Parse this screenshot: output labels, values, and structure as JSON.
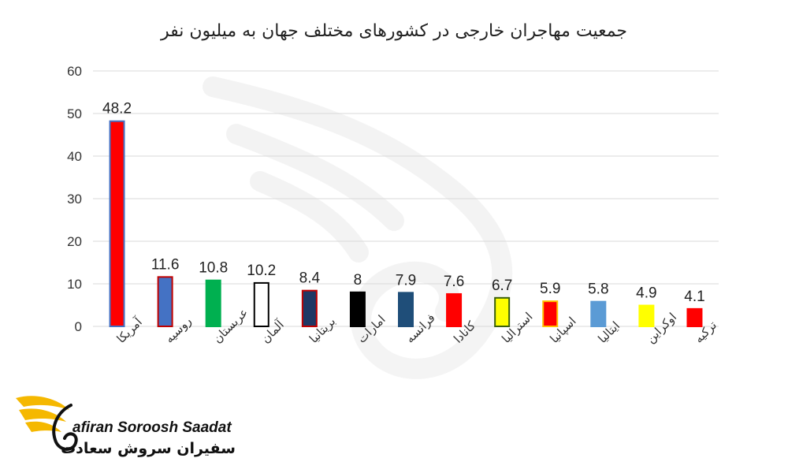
{
  "chart_data": {
    "type": "bar",
    "title": "جمعیت مهاجران خارجی در کشورهای مختلف جهان به میلیون نفر",
    "categories": [
      "آمریکا",
      "روسیه",
      "عربستان",
      "آلمان",
      "بریتانیا",
      "امارات",
      "فرانسه",
      "کانادا",
      "استرالیا",
      "اسپانیا",
      "ایتالیا",
      "اوکراین",
      "ترکیه"
    ],
    "values": [
      48.2,
      11.6,
      10.8,
      10.2,
      8.4,
      8,
      7.9,
      7.6,
      6.7,
      5.9,
      5.8,
      4.9,
      4.1
    ],
    "data_labels": [
      "48.2",
      "11.6",
      "10.8",
      "10.2",
      "8.4",
      "8",
      "7.9",
      "7.6",
      "6.7",
      "5.9",
      "5.8",
      "4.9",
      "4.1"
    ],
    "bar_fill": [
      "#ff0000",
      "#4472c4",
      "#00b050",
      "#ffffff",
      "#1f3864",
      "#000000",
      "#1f4e79",
      "#ff0000",
      "#ffff00",
      "#ff0000",
      "#5b9bd5",
      "#ffff00",
      "#ff0000"
    ],
    "bar_stroke": [
      "#4472c4",
      "#c00000",
      "#00b050",
      "#000000",
      "#c00000",
      "#000000",
      "#1f4e79",
      "#ff0000",
      "#3a5f0b",
      "#ffc000",
      "#5b9bd5",
      "#ffff00",
      "#ff0000"
    ],
    "ylim": [
      0,
      60
    ],
    "yticks": [
      0,
      10,
      20,
      30,
      40,
      50,
      60
    ],
    "grid": true,
    "xlabel": "",
    "ylabel": ""
  },
  "logo": {
    "name_en": "afiran Soroosh Saadat",
    "name_fa": "سفیران سروش سعادت",
    "accent": "#f5b800",
    "icon": "phoenix-icon"
  }
}
